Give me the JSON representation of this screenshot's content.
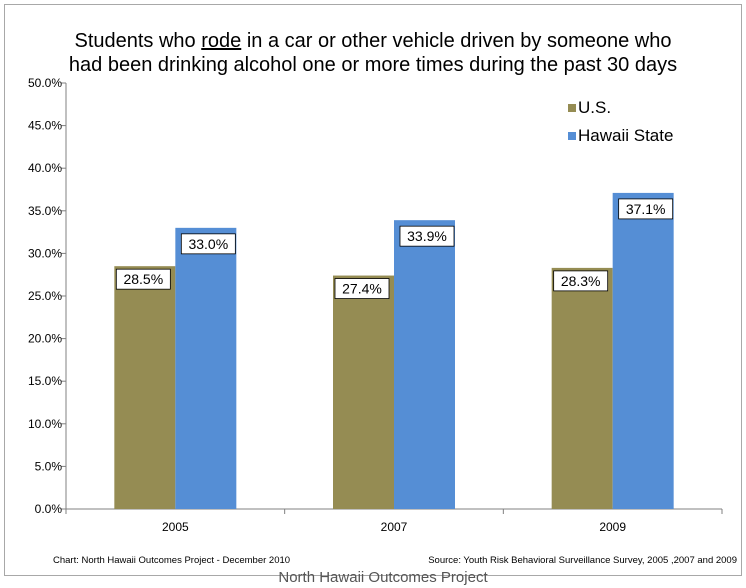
{
  "title": {
    "line1_pre": "Students who ",
    "line1_underlined": "rode",
    "line1_post": " in a car or other vehicle driven by someone who",
    "line2": "had  been drinking alcohol one or more times during the past 30 days"
  },
  "footer": {
    "left": "Chart: North Hawaii Outcomes Project - December 2010",
    "right": "Source:  Youth Risk Behavioral Surveillance Survey, 2005 ,2007 and 2009",
    "bottom": "North Hawaii Outcomes Project"
  },
  "chart_data": {
    "type": "bar",
    "title": "Students who rode in a car or other vehicle driven by someone who had  been drinking alcohol one or more times during the past 30 days",
    "categories": [
      "2005",
      "2007",
      "2009"
    ],
    "series": [
      {
        "name": "U.S.",
        "color": "#958c53",
        "values": [
          28.5,
          27.4,
          28.3
        ],
        "labels": [
          "28.5%",
          "27.4%",
          "28.3%"
        ]
      },
      {
        "name": "Hawaii State",
        "color": "#558ed5",
        "values": [
          33.0,
          33.9,
          37.1
        ],
        "labels": [
          "33.0%",
          "33.9%",
          "37.1%"
        ]
      }
    ],
    "ylim": [
      0,
      50
    ],
    "yticks": [
      "0.0%",
      "5.0%",
      "10.0%",
      "15.0%",
      "20.0%",
      "25.0%",
      "30.0%",
      "35.0%",
      "40.0%",
      "45.0%",
      "50.0%"
    ],
    "xlabel": "",
    "ylabel": "",
    "grid": false,
    "legend_position": "top-right"
  }
}
